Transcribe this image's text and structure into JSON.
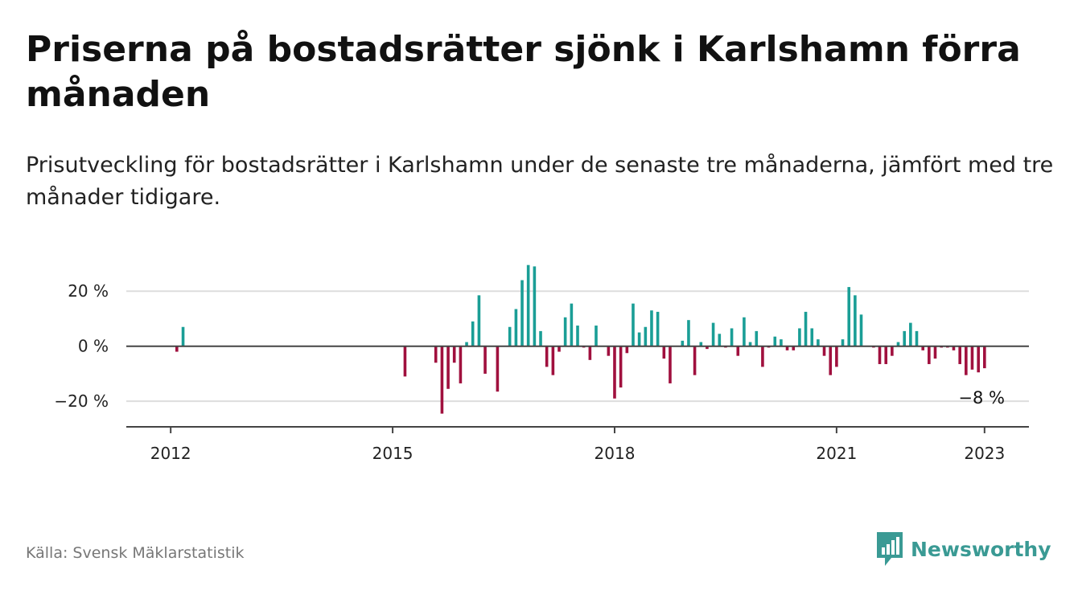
{
  "header": {
    "title": "Priserna på bostadsrätter sjönk i Karlshamn förra månaden",
    "subtitle": "Prisutveckling för bostadsrätter i Karlshamn under de senaste tre månaderna, jämfört med tre månader tidigare."
  },
  "footer": {
    "source": "Källa: Svensk Mäklarstatistik",
    "brand": "Newsworthy"
  },
  "colors": {
    "positive": "#1a9e96",
    "negative": "#a0103e",
    "brand": "#3a9a94",
    "grid": "#dddddd",
    "axis": "#444444"
  },
  "chart_data": {
    "type": "bar",
    "x_unit": "decimal year",
    "ylim": [
      -29,
      30
    ],
    "xlim": [
      2011.4,
      2023.6
    ],
    "y_ticks": [
      {
        "value": 20,
        "label": "20 %"
      },
      {
        "value": 0,
        "label": "0 %"
      },
      {
        "value": -20,
        "label": "−20 %"
      }
    ],
    "x_ticks": [
      {
        "value": 2012,
        "label": "2012"
      },
      {
        "value": 2015,
        "label": "2015"
      },
      {
        "value": 2018,
        "label": "2018"
      },
      {
        "value": 2021,
        "label": "2021"
      },
      {
        "value": 2023,
        "label": "2023"
      }
    ],
    "grid": true,
    "annotation": {
      "x": 2022.917,
      "y": -8,
      "label": "−8 %"
    },
    "points": [
      [
        2012.083,
        -2
      ],
      [
        2012.167,
        7
      ],
      [
        2015.167,
        -11
      ],
      [
        2015.583,
        -6
      ],
      [
        2015.667,
        -24.5
      ],
      [
        2015.75,
        -15.5
      ],
      [
        2015.833,
        -6
      ],
      [
        2015.917,
        -13.5
      ],
      [
        2016.0,
        1.5
      ],
      [
        2016.083,
        9
      ],
      [
        2016.167,
        18.5
      ],
      [
        2016.25,
        -10
      ],
      [
        2016.417,
        -16.5
      ],
      [
        2016.583,
        7
      ],
      [
        2016.667,
        13.5
      ],
      [
        2016.75,
        24
      ],
      [
        2016.833,
        29.5
      ],
      [
        2016.917,
        29
      ],
      [
        2017.0,
        5.5
      ],
      [
        2017.083,
        -7.5
      ],
      [
        2017.167,
        -10.5
      ],
      [
        2017.25,
        -2
      ],
      [
        2017.333,
        10.5
      ],
      [
        2017.417,
        15.5
      ],
      [
        2017.5,
        7.5
      ],
      [
        2017.583,
        -0.5
      ],
      [
        2017.667,
        -5
      ],
      [
        2017.75,
        7.5
      ],
      [
        2017.917,
        -3.5
      ],
      [
        2018.0,
        -19
      ],
      [
        2018.083,
        -15
      ],
      [
        2018.167,
        -2.5
      ],
      [
        2018.25,
        15.5
      ],
      [
        2018.333,
        5
      ],
      [
        2018.417,
        7
      ],
      [
        2018.5,
        13
      ],
      [
        2018.583,
        12.5
      ],
      [
        2018.667,
        -4.5
      ],
      [
        2018.75,
        -13.5
      ],
      [
        2018.917,
        2
      ],
      [
        2019.0,
        9.5
      ],
      [
        2019.083,
        -10.5
      ],
      [
        2019.167,
        1.5
      ],
      [
        2019.25,
        -1
      ],
      [
        2019.333,
        8.5
      ],
      [
        2019.417,
        4.5
      ],
      [
        2019.5,
        -0.5
      ],
      [
        2019.583,
        6.5
      ],
      [
        2019.667,
        -3.5
      ],
      [
        2019.75,
        10.5
      ],
      [
        2019.833,
        1.5
      ],
      [
        2019.917,
        5.5
      ],
      [
        2020.0,
        -7.5
      ],
      [
        2020.083,
        -0.5
      ],
      [
        2020.167,
        3.5
      ],
      [
        2020.25,
        2.5
      ],
      [
        2020.333,
        -1.5
      ],
      [
        2020.417,
        -1.5
      ],
      [
        2020.5,
        6.5
      ],
      [
        2020.583,
        12.5
      ],
      [
        2020.667,
        6.5
      ],
      [
        2020.75,
        2.5
      ],
      [
        2020.833,
        -3.5
      ],
      [
        2020.917,
        -10.5
      ],
      [
        2021.0,
        -7.5
      ],
      [
        2021.083,
        2.5
      ],
      [
        2021.167,
        21.5
      ],
      [
        2021.25,
        18.5
      ],
      [
        2021.333,
        11.5
      ],
      [
        2021.5,
        -0.5
      ],
      [
        2021.583,
        -6.5
      ],
      [
        2021.667,
        -6.5
      ],
      [
        2021.75,
        -3.5
      ],
      [
        2021.833,
        1.5
      ],
      [
        2021.917,
        5.5
      ],
      [
        2022.0,
        8.5
      ],
      [
        2022.083,
        5.5
      ],
      [
        2022.167,
        -1.5
      ],
      [
        2022.25,
        -6.5
      ],
      [
        2022.333,
        -4.5
      ],
      [
        2022.417,
        -0.5
      ],
      [
        2022.5,
        -0.5
      ],
      [
        2022.583,
        -1.5
      ],
      [
        2022.667,
        -6.5
      ],
      [
        2022.75,
        -10.5
      ],
      [
        2022.833,
        -8.5
      ],
      [
        2022.917,
        -9.5
      ],
      [
        2023.0,
        -8
      ]
    ]
  }
}
